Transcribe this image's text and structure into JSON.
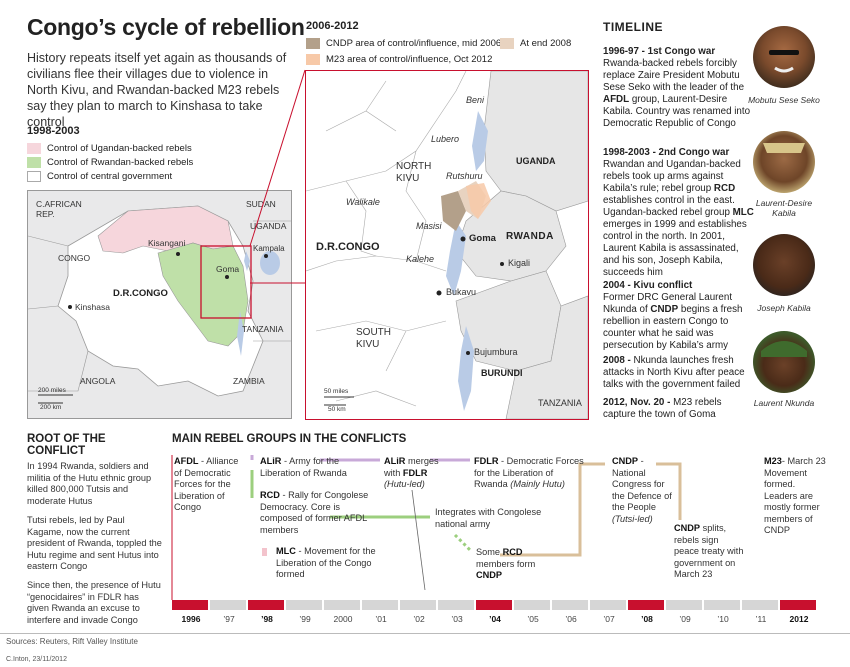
{
  "title": "Congo’s cycle of rebellion",
  "intro": "History repeats itself yet again as thousands of civilians flee their villages due to violence in North Kivu, and Rwandan-backed M23 rebels say they plan to march to Kinshasa to take control",
  "small_map": {
    "heading": "1998-2003",
    "legend": [
      {
        "label": "Control of Ugandan-backed rebels",
        "color": "#f6d6dc"
      },
      {
        "label": "Control of Rwandan-backed rebels",
        "color": "#bfe0a8"
      },
      {
        "label": "Control of central government",
        "color": "#ffffff"
      }
    ],
    "labels": {
      "car": "C.AFRICAN REP.",
      "sudan": "SUDAN",
      "uganda": "UGANDA",
      "congo": "CONGO",
      "kisangani": "Kisangani",
      "kampala": "Kampala",
      "goma": "Goma",
      "drc": "D.R.CONGO",
      "kinshasa": "Kinshasa",
      "tanzania": "TANZANIA",
      "angola": "ANGOLA",
      "zambia": "ZAMBIA",
      "scale_miles": "200 miles",
      "scale_km": "200 km"
    }
  },
  "big_map": {
    "heading": "2006-2012",
    "legend": [
      {
        "label": "CNDP area of control/influence, mid 2006",
        "color": "#b3a08a"
      },
      {
        "label": "At end 2008",
        "color": "#e8d3c0"
      },
      {
        "label": "M23 area of control/influence, Oct 2012",
        "color": "#f7c9a8"
      }
    ],
    "labels": {
      "beni": "Beni",
      "lubero": "Lubero",
      "north_kivu": "NORTH KIVU",
      "rutshuru": "Rutshuru",
      "uganda": "UGANDA",
      "walikale": "Walikale",
      "masisi": "Masisi",
      "goma": "Goma",
      "rwanda": "RWANDA",
      "drc": "D.R.CONGO",
      "kalehe": "Kalehe",
      "kigali": "Kigali",
      "bukavu": "Bukavu",
      "south_kivu": "SOUTH KIVU",
      "bujumbura": "Bujumbura",
      "burundi": "BURUNDI",
      "tanzania": "TANZANIA",
      "scale_miles": "50 miles",
      "scale_km": "50 km"
    }
  },
  "timeline": {
    "title": "TIMELINE",
    "items": [
      {
        "head": "1996-97 - 1st Congo war",
        "body_pre": "Rwanda-backed rebels forcibly replace Zaire President Mobutu Sese Seko with the leader of the ",
        "bold": "AFDL",
        "body_post": " group, Laurent-Desire Kabila. Country was renamed into Democratic Republic of Congo"
      },
      {
        "head": "1998-2003 - 2nd Congo war",
        "body_pre": "Rwandan and Ugandan-backed rebels took up arms against Kabila’s rule; rebel group ",
        "bold": "RCD",
        "body_post": " establishes control in the east. Ugandan-backed rebel group ",
        "bold2": "MLC",
        "body_post2": " emerges in 1999 and establishes control in the north. In 2001, Laurent Kabila is assassinated, and his son, Joseph Kabila, succeeds him"
      },
      {
        "head": "2004 - Kivu conflict",
        "body_pre": "Former DRC General Laurent Nkunda of ",
        "bold": "CNDP",
        "body_post": " begins a fresh rebellion in eastern Congo to counter what he said was persecution by Kabila’s army"
      },
      {
        "head": "2008 -",
        "body_pre": " Nkunda launches fresh attacks in North Kivu after peace talks with the government failed",
        "bold": "",
        "body_post": ""
      },
      {
        "head": "2012, Nov. 20 -",
        "body_pre": " M23 rebels capture the town of Goma",
        "bold": "",
        "body_post": ""
      }
    ],
    "portraits": [
      {
        "caption": "Mobutu Sese Seko"
      },
      {
        "caption": "Laurent-Desire Kabila"
      },
      {
        "caption": "Joseph Kabila"
      },
      {
        "caption": "Laurent Nkunda"
      }
    ]
  },
  "root": {
    "title": "ROOT OF THE CONFLICT",
    "p1": "In 1994 Rwanda, soldiers and militia of the Hutu ethnic group killed 800,000 Tutsis and moderate Hutus",
    "p2": "Tutsi rebels, led by Paul Kagame, now the current president of Rwanda, toppled the Hutu regime and sent Hutus into eastern Congo",
    "p3": "Since then, the presence of Hutu “genocidaires” in FDLR has given Rwanda an excuse to interfere and invade Congo"
  },
  "groups": {
    "title": "MAIN REBEL GROUPS IN THE CONFLICTS",
    "afdl": {
      "name": "AFDL",
      "text": " - Alliance of Democratic Forces for the Liberation of Congo"
    },
    "alir": {
      "name": "ALiR",
      "text": " - Army for the Liberation of Rwanda"
    },
    "alir_merge": {
      "name": "ALiR",
      "text": " merges with ",
      "name2": "FDLR",
      "tag": "(Hutu-led)"
    },
    "fdlr": {
      "name": "FDLR",
      "text": " - Democratic Forces for the Liberation of Rwanda ",
      "tag": "(Mainly Hutu)"
    },
    "rcd": {
      "name": "RCD",
      "text": " - Rally for Congolese Democracy. Core is composed of former AFDL members"
    },
    "integrates": "Integrates with Congolese national army",
    "mlc": {
      "name": "MLC",
      "text": " - Movement for the Liberation of the Congo formed"
    },
    "some_rcd": {
      "pre": "Some ",
      "name": "RCD",
      "mid": " members form ",
      "name2": "CNDP"
    },
    "cndp": {
      "name": "CNDP",
      "text": " - National Congress for the Defence of the People ",
      "tag": "(Tutsi-led)"
    },
    "cndp_splits": {
      "name": "CNDP",
      "text": " splits, rebels sign peace treaty with government on March 23"
    },
    "m23": {
      "name": "M23",
      "text": "- March 23 Movement formed. Leaders are mostly former members of CNDP"
    }
  },
  "years": [
    {
      "label": "1996",
      "bold": true
    },
    {
      "label": "’97",
      "bold": false
    },
    {
      "label": "’98",
      "bold": true
    },
    {
      "label": "’99",
      "bold": false
    },
    {
      "label": "2000",
      "bold": false
    },
    {
      "label": "’01",
      "bold": false
    },
    {
      "label": "’02",
      "bold": false
    },
    {
      "label": "’03",
      "bold": false
    },
    {
      "label": "’04",
      "bold": true
    },
    {
      "label": "’05",
      "bold": false
    },
    {
      "label": "’06",
      "bold": false
    },
    {
      "label": "’07",
      "bold": false
    },
    {
      "label": "’08",
      "bold": true
    },
    {
      "label": "’09",
      "bold": false
    },
    {
      "label": "’10",
      "bold": false
    },
    {
      "label": "’11",
      "bold": false
    },
    {
      "label": "2012",
      "bold": true
    }
  ],
  "colors": {
    "accent": "#c8102e",
    "bar_gray": "#d6d6d6",
    "green": "#9ccf7e",
    "purple": "#c8a9d8",
    "tan": "#d9bf9a",
    "pink": "#f3c3cc",
    "water": "#b9cbe6"
  },
  "sources": "Sources: Reuters, Rift Valley Institute",
  "credit": "C.Inton, 23/11/2012"
}
